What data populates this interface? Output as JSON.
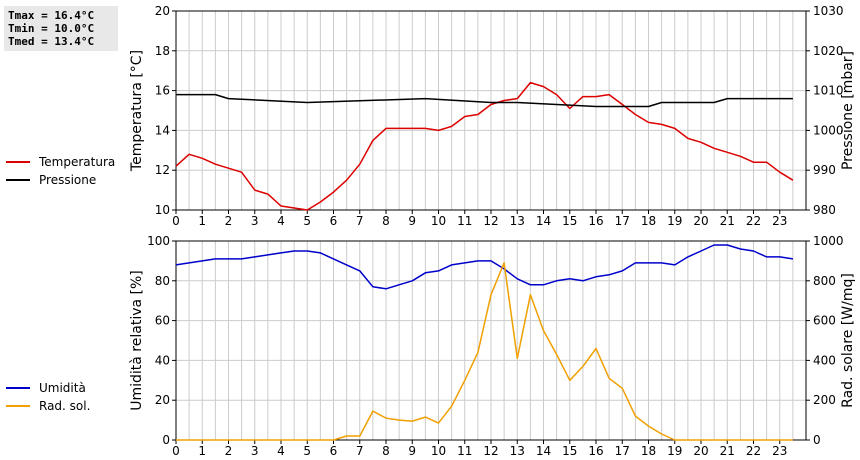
{
  "stats": {
    "tmax": "Tmax = 16.4°C",
    "tmin": "Tmin = 10.0°C",
    "tmed": "Tmed = 13.4°C"
  },
  "colors": {
    "temperature": "#dd0000",
    "pressure": "#000000",
    "humidity": "#0000cc",
    "radiation": "#f0a000",
    "grid": "#cccccc"
  },
  "chart_data": [
    {
      "type": "line",
      "x_ticks": [
        0,
        1,
        2,
        3,
        4,
        5,
        6,
        7,
        8,
        9,
        10,
        11,
        12,
        13,
        14,
        15,
        16,
        17,
        18,
        19,
        20,
        21,
        22,
        23
      ],
      "xlim": [
        0,
        24
      ],
      "ylabel": "Temperatura [°C]",
      "ylim": [
        10,
        20
      ],
      "y_ticks": [
        10,
        12,
        14,
        16,
        18,
        20
      ],
      "ylabel_right": "Pressione [mbar]",
      "ylim_right": [
        980,
        1030
      ],
      "y_ticks_right": [
        980,
        990,
        1000,
        1010,
        1020,
        1030
      ],
      "grid": true,
      "legend_position": "left",
      "series": [
        {
          "name": "Temperatura",
          "axis": "left",
          "color": "#dd0000",
          "x": [
            0,
            0.5,
            1,
            1.5,
            2,
            2.5,
            3,
            3.5,
            4,
            4.5,
            5,
            5.5,
            6,
            6.5,
            7,
            7.5,
            8,
            8.5,
            9,
            9.5,
            10,
            10.5,
            11,
            11.5,
            12,
            12.5,
            13,
            13.5,
            14,
            14.5,
            15,
            15.5,
            16,
            16.5,
            17,
            17.5,
            18,
            18.5,
            19,
            19.5,
            20,
            20.5,
            21,
            21.5,
            22,
            22.5,
            23,
            23.5
          ],
          "values": [
            12.2,
            12.8,
            12.6,
            12.3,
            12.1,
            11.9,
            11.0,
            10.8,
            10.2,
            10.1,
            10.0,
            10.4,
            10.9,
            11.5,
            12.3,
            13.5,
            14.1,
            14.1,
            14.1,
            14.1,
            14.0,
            14.2,
            14.7,
            14.8,
            15.3,
            15.5,
            15.6,
            16.4,
            16.2,
            15.8,
            15.1,
            15.7,
            15.7,
            15.8,
            15.3,
            14.8,
            14.4,
            14.3,
            14.1,
            13.6,
            13.4,
            13.1,
            12.9,
            12.7,
            12.4,
            12.4,
            11.9,
            11.5
          ]
        },
        {
          "name": "Pressione",
          "axis": "right",
          "color": "#000000",
          "x": [
            0,
            1,
            1.5,
            2,
            5,
            9.5,
            12,
            13,
            16,
            18,
            18.5,
            20.5,
            21,
            23.5
          ],
          "values": [
            1009,
            1009,
            1009,
            1008,
            1007,
            1008,
            1007,
            1007,
            1006,
            1006,
            1007,
            1007,
            1008,
            1008
          ]
        }
      ]
    },
    {
      "type": "line",
      "x_ticks": [
        0,
        1,
        2,
        3,
        4,
        5,
        6,
        7,
        8,
        9,
        10,
        11,
        12,
        13,
        14,
        15,
        16,
        17,
        18,
        19,
        20,
        21,
        22,
        23
      ],
      "xlim": [
        0,
        24
      ],
      "ylabel": "Umidità relativa [%]",
      "ylim": [
        0,
        100
      ],
      "y_ticks": [
        0,
        20,
        40,
        60,
        80,
        100
      ],
      "ylabel_right": "Rad. solare [W/mq]",
      "ylim_right": [
        0,
        1000
      ],
      "y_ticks_right": [
        0,
        200,
        400,
        600,
        800,
        1000
      ],
      "grid": true,
      "legend_position": "left",
      "series": [
        {
          "name": "Umidità",
          "axis": "left",
          "color": "#0000cc",
          "x": [
            0,
            0.5,
            1,
            1.5,
            2,
            2.5,
            3,
            3.5,
            4,
            4.5,
            5,
            5.5,
            6,
            6.5,
            7,
            7.5,
            8,
            8.5,
            9,
            9.5,
            10,
            10.5,
            11,
            11.5,
            12,
            12.5,
            13,
            13.5,
            14,
            14.5,
            15,
            15.5,
            16,
            16.5,
            17,
            17.5,
            18,
            18.5,
            19,
            19.5,
            20,
            20.5,
            21,
            21.5,
            22,
            22.5,
            23,
            23.5
          ],
          "values": [
            88,
            89,
            90,
            91,
            91,
            91,
            92,
            93,
            94,
            95,
            95,
            94,
            91,
            88,
            85,
            77,
            76,
            78,
            80,
            84,
            85,
            88,
            89,
            90,
            90,
            86,
            81,
            78,
            78,
            80,
            81,
            80,
            82,
            83,
            85,
            89,
            89,
            89,
            88,
            92,
            95,
            98,
            98,
            96,
            95,
            92,
            92,
            91
          ]
        },
        {
          "name": "Rad. sol.",
          "axis": "right",
          "color": "#f0a000",
          "x": [
            0,
            6,
            6.5,
            7,
            7.5,
            8,
            8.5,
            9,
            9.5,
            10,
            10.5,
            11,
            11.5,
            12,
            12.5,
            13,
            13.5,
            14,
            14.5,
            15,
            15.5,
            16,
            16.5,
            17,
            17.5,
            18,
            18.5,
            19,
            23.5
          ],
          "values": [
            0,
            0,
            20,
            20,
            145,
            110,
            100,
            95,
            115,
            85,
            170,
            300,
            440,
            730,
            890,
            410,
            730,
            550,
            430,
            300,
            370,
            460,
            310,
            260,
            120,
            70,
            30,
            0,
            0
          ]
        }
      ]
    }
  ]
}
